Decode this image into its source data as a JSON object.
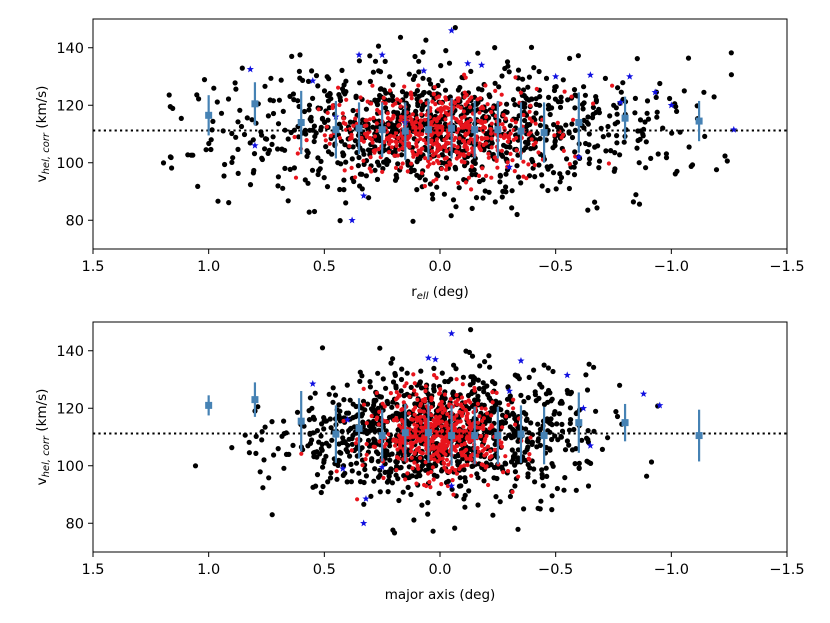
{
  "colors": {
    "black_points": "#000000",
    "red_points": "#e8141c",
    "blue_stars": "#1010e0",
    "binned_means": "#4682b4",
    "reference_line": "#000000"
  },
  "chart_data": [
    {
      "type": "scatter",
      "panel": "top",
      "xlabel_main": "r",
      "xlabel_sub": "ell",
      "xlabel_unit": " (deg)",
      "ylabel_main": "v",
      "ylabel_sub": "hel, corr",
      "ylabel_unit": " (km/s)",
      "xlim": [
        1.5,
        -1.5
      ],
      "ylim": [
        70,
        150
      ],
      "x_ticks": [
        1.5,
        1.0,
        0.5,
        0.0,
        -0.5,
        -1.0,
        -1.5
      ],
      "x_tick_labels": [
        "1.5",
        "1.0",
        "0.5",
        "0.0",
        "−0.5",
        "−1.0",
        "−1.5"
      ],
      "y_ticks": [
        80,
        100,
        120,
        140
      ],
      "y_tick_labels": [
        "80",
        "100",
        "120",
        "140"
      ],
      "reference_line_y": 111.2,
      "binned": {
        "x": [
          1.0,
          0.8,
          0.6,
          0.45,
          0.35,
          0.25,
          0.15,
          0.05,
          -0.05,
          -0.15,
          -0.25,
          -0.35,
          -0.45,
          -0.6,
          -0.8,
          -1.12
        ],
        "y": [
          116.5,
          120.5,
          114.0,
          111.5,
          112.0,
          111.5,
          111.0,
          111.5,
          112.0,
          111.5,
          111.5,
          111.0,
          110.5,
          114.0,
          115.5,
          114.5
        ],
        "yerr": [
          7,
          7.5,
          11,
          10,
          9,
          9.5,
          10,
          10.5,
          10.5,
          10,
          10,
          10,
          10.5,
          10.5,
          7.5,
          7
        ]
      },
      "blue_stars": {
        "x": [
          0.8,
          0.82,
          0.55,
          0.45,
          0.38,
          0.33,
          0.25,
          0.15,
          0.07,
          -0.05,
          -0.12,
          -0.18,
          -0.3,
          -0.5,
          -0.6,
          -0.65,
          -0.78,
          -0.82,
          -0.93,
          -1.0,
          -1.27,
          0.35
        ],
        "y": [
          106.0,
          132.5,
          128.5,
          116.0,
          80.0,
          88.5,
          137.5,
          114.0,
          132.0,
          146.0,
          134.5,
          134.0,
          98.5,
          130.0,
          102.0,
          130.5,
          121.0,
          130.0,
          124.5,
          120.0,
          111.5,
          137.5
        ]
      }
    },
    {
      "type": "scatter",
      "panel": "bottom",
      "xlabel_main": "major axis (deg)",
      "ylabel_main": "v",
      "ylabel_sub": "hel, corr",
      "ylabel_unit": " (km/s)",
      "xlim": [
        1.5,
        -1.5
      ],
      "ylim": [
        70,
        150
      ],
      "x_ticks": [
        1.5,
        1.0,
        0.5,
        0.0,
        -0.5,
        -1.0,
        -1.5
      ],
      "x_tick_labels": [
        "1.5",
        "1.0",
        "0.5",
        "0.0",
        "−0.5",
        "−1.0",
        "−1.5"
      ],
      "y_ticks": [
        80,
        100,
        120,
        140
      ],
      "y_tick_labels": [
        "80",
        "100",
        "120",
        "140"
      ],
      "reference_line_y": 111.2,
      "binned": {
        "x": [
          1.0,
          0.8,
          0.6,
          0.45,
          0.35,
          0.25,
          0.15,
          0.05,
          -0.05,
          -0.15,
          -0.25,
          -0.35,
          -0.45,
          -0.6,
          -0.8,
          -1.12
        ],
        "y": [
          121.0,
          123.0,
          115.5,
          111.0,
          113.0,
          110.5,
          111.5,
          111.5,
          110.5,
          110.5,
          110.5,
          111.0,
          110.5,
          115.0,
          115.0,
          110.5
        ],
        "yerr": [
          3.5,
          6,
          10.5,
          10,
          10.5,
          9,
          10,
          10.5,
          10.5,
          10,
          10,
          10,
          10,
          10.5,
          6.5,
          9
        ]
      },
      "blue_stars": {
        "x": [
          0.55,
          0.42,
          0.33,
          0.32,
          0.25,
          0.05,
          0.02,
          -0.05,
          -0.05,
          -0.3,
          -0.35,
          -0.55,
          -0.62,
          -0.65,
          -0.88,
          -0.95,
          0.4
        ],
        "y": [
          128.5,
          99.0,
          80.0,
          88.5,
          99.5,
          137.5,
          137.0,
          93.0,
          146.0,
          126.0,
          136.5,
          131.5,
          120.0,
          107.0,
          125.0,
          121.0,
          116.0
        ]
      }
    }
  ]
}
